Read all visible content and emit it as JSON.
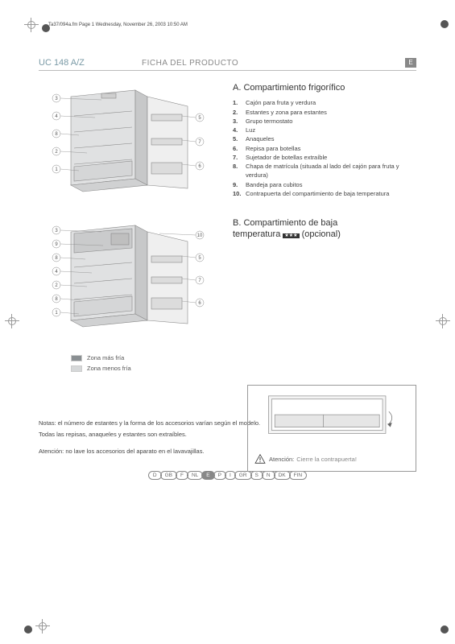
{
  "meta": {
    "print_line": "Ta37/094a.fm  Page 1  Wednesday, November 26, 2003  10:50 AM"
  },
  "header": {
    "model": "UC 148 A/Z",
    "title": "FICHA DEL PRODUCTO",
    "lang_badge": "E"
  },
  "section_a": {
    "title": "A. Compartimiento frigorífico",
    "items": [
      {
        "n": "1.",
        "t": "Cajón para fruta y verdura"
      },
      {
        "n": "2.",
        "t": "Estantes y zona para estantes"
      },
      {
        "n": "3.",
        "t": "Grupo termostato"
      },
      {
        "n": "4.",
        "t": "Luz"
      },
      {
        "n": "5.",
        "t": "Anaqueles"
      },
      {
        "n": "6.",
        "t": "Repisa para botellas"
      },
      {
        "n": "7.",
        "t": "Sujetador de botellas extraíble"
      },
      {
        "n": "8.",
        "t": "Chapa de matrícula (situada al lado del cajón para fruta y verdura)"
      },
      {
        "n": "9.",
        "t": "Bandeja para cubitos"
      },
      {
        "n": "10.",
        "t": "Contrapuerta del compartimiento de baja temperatura"
      }
    ],
    "callouts_left": [
      "3",
      "4",
      "8",
      "2",
      "1"
    ],
    "callouts_right": [
      "5",
      "7",
      "6"
    ]
  },
  "section_b": {
    "title_line1": "B. Compartimiento de baja",
    "title_line2": "temperatura ",
    "title_suffix": " (opcional)",
    "stars_label": "★★★",
    "callouts_left": [
      "3",
      "9",
      "8",
      "4",
      "2",
      "8",
      "1"
    ],
    "callouts_right": [
      "10",
      "5",
      "7",
      "6"
    ]
  },
  "legend": {
    "cold": {
      "label": "Zona más fría",
      "color": "#8a8f92"
    },
    "less_cold": {
      "label": "Zona menos fría",
      "color": "#d6d8d9"
    }
  },
  "warning": {
    "prefix": "Atención:",
    "text": "Cierre la contrapuerta!"
  },
  "notes": {
    "line1": "Notas: el número de estantes y la forma de los accesorios varían según el modelo.",
    "line2": "Todas las repisas, anaqueles y estantes son extraíbles.",
    "washer": "Atención: no lave los accesorios del aparato en el lavavajillas."
  },
  "languages": [
    "D",
    "GB",
    "F",
    "NL",
    "E",
    "P",
    "I",
    "GR",
    "S",
    "N",
    "DK",
    "FIN"
  ],
  "active_lang": "E",
  "colors": {
    "fridge_light": "#e8e9ea",
    "fridge_mid": "#cfd1d2",
    "fridge_dark": "#b7b9ba",
    "line": "#888888"
  }
}
